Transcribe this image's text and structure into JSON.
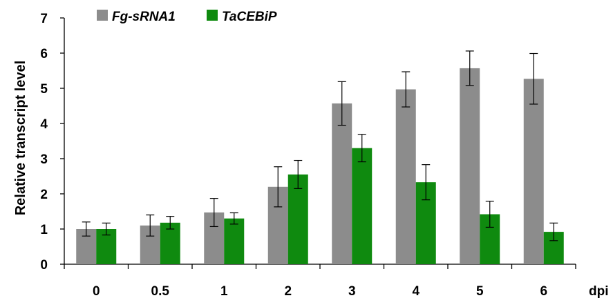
{
  "chart_data": {
    "type": "bar",
    "categories": [
      "0",
      "0.5",
      "1",
      "2",
      "3",
      "4",
      "5",
      "6"
    ],
    "x_unit_label": "dpi",
    "ylabel": "Relative transcript level",
    "ylim": [
      0,
      7
    ],
    "yticks": [
      "0",
      "1",
      "2",
      "3",
      "4",
      "5",
      "6",
      "7"
    ],
    "grid": false,
    "legend_position": "top-left",
    "series": [
      {
        "name": "Fg-sRNA1",
        "color": "#8c8c8c",
        "values": [
          1.0,
          1.1,
          1.47,
          2.2,
          4.57,
          4.97,
          5.57,
          5.27
        ],
        "errors": [
          0.2,
          0.3,
          0.4,
          0.57,
          0.62,
          0.5,
          0.49,
          0.72
        ]
      },
      {
        "name": "TaCEBiP",
        "color": "#0f8a0f",
        "values": [
          1.0,
          1.18,
          1.3,
          2.55,
          3.3,
          2.33,
          1.42,
          0.92
        ],
        "errors": [
          0.17,
          0.18,
          0.16,
          0.4,
          0.39,
          0.5,
          0.37,
          0.25
        ]
      }
    ]
  }
}
